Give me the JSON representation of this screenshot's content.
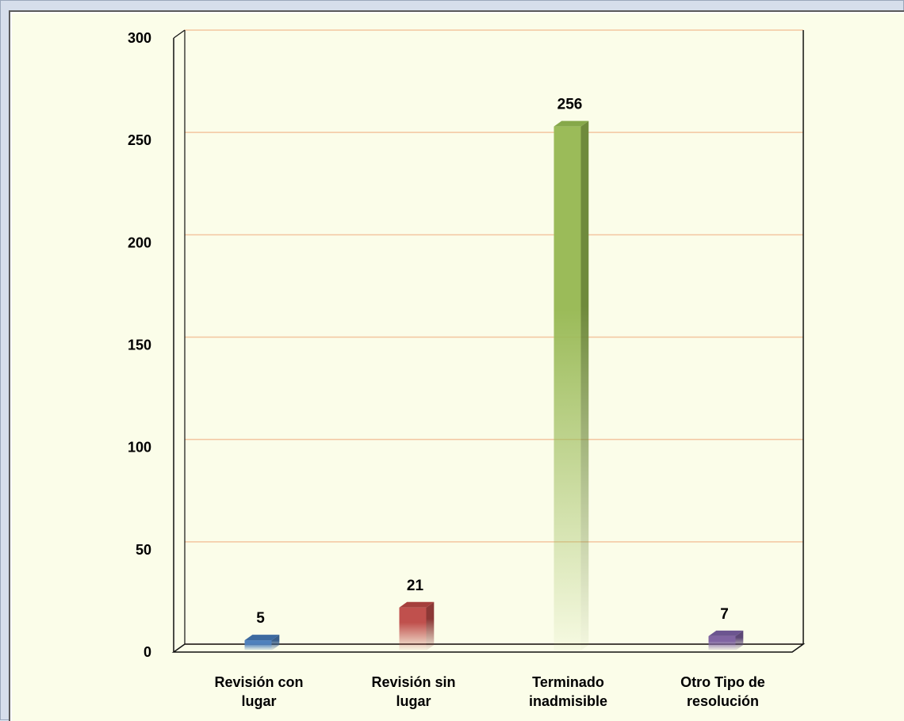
{
  "chart_data": {
    "type": "bar",
    "title": "",
    "xlabel": "",
    "ylabel": "",
    "categories": [
      [
        "Revisión con",
        "lugar"
      ],
      [
        "Revisión sin",
        "lugar"
      ],
      [
        "Terminado",
        "inadmisible"
      ],
      [
        "Otro Tipo de",
        "resolución"
      ]
    ],
    "values": [
      5,
      21,
      256,
      7
    ],
    "ylim": [
      0,
      300
    ],
    "yticks": [
      0,
      50,
      100,
      150,
      200,
      250,
      300
    ],
    "grid": true,
    "legend": "none",
    "colors": [
      "#4f81bd",
      "#c0504d",
      "#9bbb59",
      "#8064a2"
    ],
    "side_colors": [
      "#385d8a",
      "#8c3836",
      "#6f8a3c",
      "#5c4776"
    ],
    "top_colors": [
      "#3d6aa0",
      "#a53f3c",
      "#86a84a",
      "#6c5590"
    ],
    "grid_color": "#f3c6a0"
  }
}
